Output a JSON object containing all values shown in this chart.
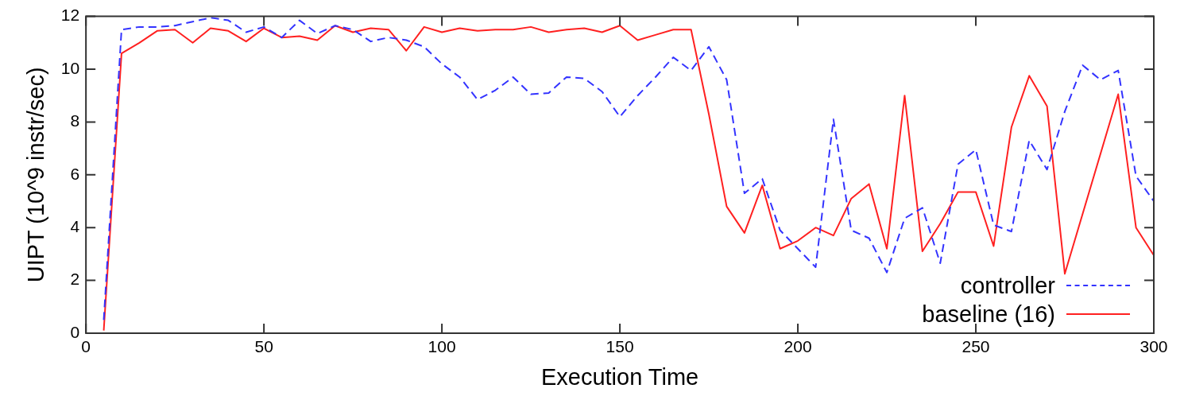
{
  "chart_data": {
    "type": "line",
    "xlabel": "Execution Time",
    "ylabel": "UIPT (10^9 instr/sec)",
    "x": [
      5,
      10,
      15,
      20,
      25,
      30,
      35,
      40,
      45,
      50,
      55,
      60,
      65,
      70,
      75,
      80,
      85,
      90,
      95,
      100,
      105,
      110,
      115,
      120,
      125,
      130,
      135,
      140,
      145,
      150,
      155,
      160,
      165,
      170,
      175,
      180,
      185,
      190,
      195,
      200,
      205,
      210,
      215,
      220,
      225,
      230,
      235,
      240,
      245,
      250,
      255,
      260,
      265,
      270,
      275,
      280,
      285,
      290,
      295,
      300
    ],
    "series": [
      {
        "name": "controller",
        "color": "#3333ff",
        "line_style": "dashed",
        "values": [
          0.5,
          11.5,
          11.6,
          11.6,
          11.65,
          11.8,
          11.95,
          11.85,
          11.4,
          11.6,
          11.2,
          11.85,
          11.35,
          11.65,
          11.5,
          11.05,
          11.2,
          11.1,
          10.85,
          10.2,
          9.7,
          8.85,
          9.2,
          9.7,
          9.05,
          9.1,
          9.7,
          9.65,
          9.15,
          8.2,
          9.0,
          9.7,
          10.45,
          9.95,
          10.85,
          9.6,
          5.3,
          5.85,
          3.9,
          3.2,
          2.5,
          8.1,
          3.9,
          3.6,
          2.3,
          4.35,
          4.75,
          2.65,
          6.4,
          6.95,
          4.1,
          3.85,
          7.3,
          6.2,
          8.4,
          10.15,
          9.6,
          9.95,
          5.95,
          5.0
        ]
      },
      {
        "name": "baseline (16)",
        "color": "#ff2020",
        "line_style": "solid",
        "x": [
          5,
          10,
          15,
          20,
          25,
          30,
          35,
          40,
          45,
          50,
          55,
          60,
          65,
          70,
          75,
          80,
          85,
          90,
          95,
          100,
          105,
          110,
          115,
          120,
          125,
          130,
          135,
          140,
          145,
          150,
          155,
          160,
          165,
          170,
          175,
          180,
          185,
          190,
          195,
          200,
          205,
          210,
          215,
          220,
          225,
          230,
          235,
          240,
          245,
          250,
          255,
          260,
          265,
          270,
          275,
          290,
          295,
          300
        ],
        "values": [
          0.1,
          10.6,
          11.0,
          11.45,
          11.5,
          11.0,
          11.55,
          11.45,
          11.05,
          11.55,
          11.2,
          11.25,
          11.1,
          11.65,
          11.4,
          11.55,
          11.5,
          10.7,
          11.6,
          11.4,
          11.55,
          11.45,
          11.5,
          11.5,
          11.6,
          11.4,
          11.5,
          11.55,
          11.4,
          11.65,
          11.1,
          11.3,
          11.5,
          11.5,
          8.3,
          4.8,
          3.8,
          5.6,
          3.2,
          3.5,
          4.0,
          3.7,
          5.1,
          5.65,
          3.2,
          9.0,
          3.1,
          4.15,
          5.35,
          5.35,
          3.3,
          7.8,
          9.75,
          8.6,
          2.25,
          9.05,
          4.0,
          2.95
        ]
      }
    ],
    "xlim": [
      0,
      300
    ],
    "xticks": [
      0,
      50,
      100,
      150,
      200,
      250,
      300
    ],
    "ylim": [
      0,
      12
    ],
    "yticks": [
      0,
      2,
      4,
      6,
      8,
      10,
      12
    ],
    "grid": false,
    "legend": "bottom right",
    "marker": "none"
  }
}
